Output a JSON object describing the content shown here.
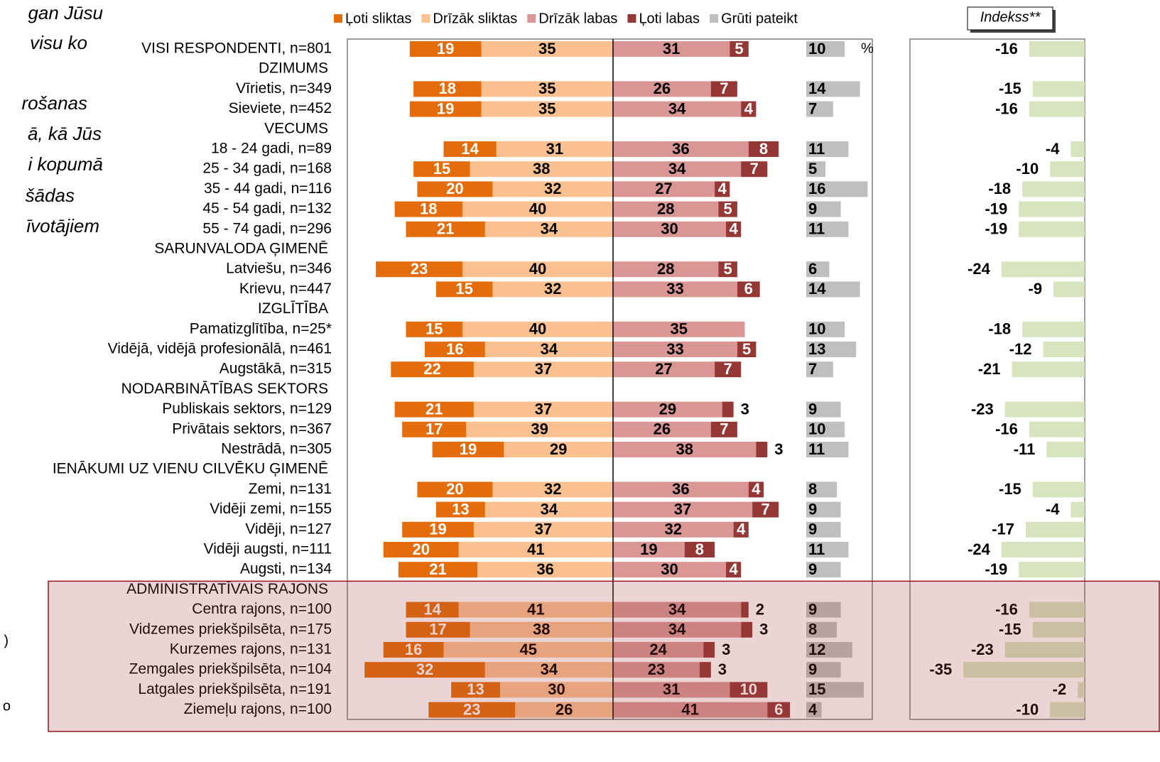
{
  "chart_data": {
    "type": "diverging_bar",
    "question_fragments": [
      "gan Jūsu",
      "visu ko",
      "rošanas",
      "ā, kā Jūs",
      "i kopumā",
      "šādas",
      "īvotājiem",
      ")",
      "o"
    ],
    "unit_note": "%",
    "categories": [
      "VISI RESPONDENTI, n=801",
      "DZIMUMS",
      "Vīrietis, n=349",
      "Sieviete, n=452",
      "VECUMS",
      "18 - 24 gadi, n=89",
      "25 - 34 gadi, n=168",
      "35 - 44 gadi, n=116",
      "45 - 54 gadi, n=132",
      "55 - 74 gadi, n=296",
      "SARUNVALODA ĢIMENĒ",
      "Latviešu, n=346",
      "Krievu, n=447",
      "IZGLĪTĪBA",
      "Pamatizglītība, n=25*",
      "Vidējā, vidējā profesionālā, n=461",
      "Augstākā, n=315",
      "NODARBINĀTĪBAS SEKTORS",
      "Publiskais sektors, n=129",
      "Privātais sektors, n=367",
      "Nestrādā, n=305",
      "IENĀKUMI UZ VIENU CILVĒKU ĢIMENĒ",
      "Zemi, n=131",
      "Vidēji zemi, n=155",
      "Vidēji, n=127",
      "Vidēji augsti, n=111",
      "Augsti, n=134",
      "ADMINISTRATĪVAIS RAJONS",
      "Centra rajons, n=100",
      "Vidzemes priekšpilsēta, n=175",
      "Kurzemes rajons, n=131",
      "Zemgales priekšpilsēta, n=104",
      "Latgales priekšpilsēta, n=191",
      "Ziemeļu rajons, n=100"
    ],
    "series": [
      {
        "name": "Ļoti sliktas",
        "color": "#e46c0a",
        "values": [
          19,
          null,
          18,
          19,
          null,
          14,
          15,
          20,
          18,
          21,
          null,
          23,
          15,
          null,
          15,
          16,
          22,
          null,
          21,
          17,
          19,
          null,
          20,
          13,
          19,
          20,
          21,
          null,
          14,
          17,
          16,
          32,
          13,
          23
        ]
      },
      {
        "name": "Drīzāk sliktas",
        "color": "#fac090",
        "values": [
          35,
          null,
          35,
          35,
          null,
          31,
          38,
          32,
          40,
          34,
          null,
          40,
          32,
          null,
          40,
          34,
          37,
          null,
          37,
          39,
          29,
          null,
          32,
          34,
          37,
          41,
          36,
          null,
          41,
          38,
          45,
          34,
          30,
          26
        ]
      },
      {
        "name": "Drīzāk labas",
        "color": "#d99694",
        "values": [
          31,
          null,
          26,
          34,
          null,
          36,
          34,
          27,
          28,
          30,
          null,
          28,
          33,
          null,
          35,
          33,
          27,
          null,
          29,
          26,
          38,
          null,
          36,
          37,
          32,
          19,
          30,
          null,
          34,
          34,
          24,
          23,
          31,
          41
        ]
      },
      {
        "name": "Ļoti labas",
        "color": "#953735",
        "values": [
          5,
          null,
          7,
          4,
          null,
          8,
          7,
          4,
          5,
          4,
          null,
          5,
          6,
          null,
          null,
          5,
          7,
          null,
          3,
          7,
          3,
          null,
          4,
          7,
          4,
          8,
          4,
          null,
          2,
          3,
          3,
          3,
          10,
          6
        ]
      },
      {
        "name": "Grūti pateikt",
        "color": "#bfbfbf",
        "values": [
          10,
          null,
          14,
          7,
          null,
          11,
          5,
          16,
          9,
          11,
          null,
          6,
          14,
          null,
          10,
          13,
          7,
          null,
          9,
          10,
          11,
          null,
          8,
          9,
          9,
          11,
          9,
          null,
          9,
          8,
          12,
          9,
          15,
          4
        ]
      }
    ],
    "index": {
      "label": "Indekss**",
      "color": "#d7e4bd",
      "values": [
        -16,
        null,
        -15,
        -16,
        null,
        -4,
        -10,
        -18,
        -19,
        -19,
        null,
        -24,
        -9,
        null,
        -18,
        -12,
        -21,
        null,
        -23,
        -16,
        -11,
        null,
        -15,
        -4,
        -17,
        -24,
        -19,
        null,
        -16,
        -15,
        -23,
        -35,
        -2,
        -10
      ]
    },
    "highlight_from": "ADMINISTRATĪVAIS RAJONS"
  }
}
